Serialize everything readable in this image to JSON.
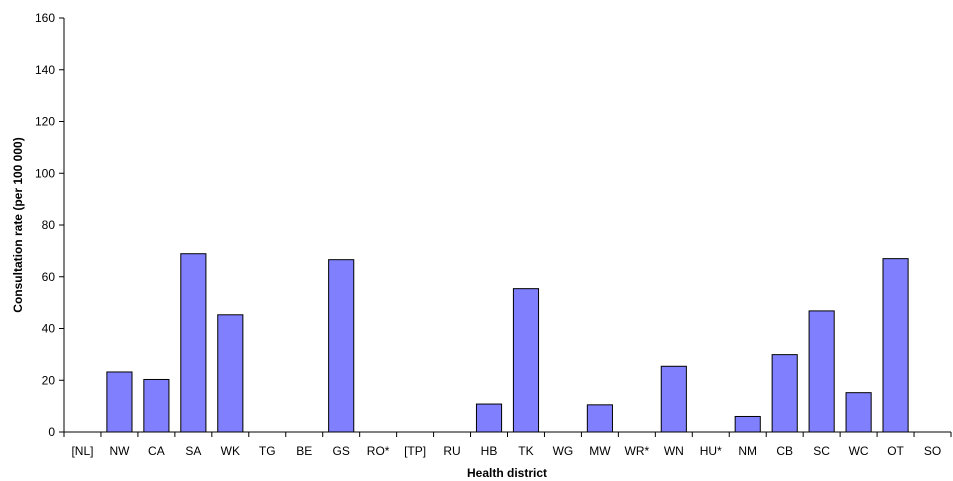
{
  "chart_data": {
    "type": "bar",
    "xlabel": "Health district",
    "ylabel": "Consultation rate (per 100 000)",
    "ylim": [
      0,
      160
    ],
    "yticks": [
      0,
      20,
      40,
      60,
      80,
      100,
      120,
      140,
      160
    ],
    "grid": false,
    "categories": [
      "[NL]",
      "NW",
      "CA",
      "SA",
      "WK",
      "TG",
      "BE",
      "GS",
      "RO*",
      "[TP]",
      "RU",
      "HB",
      "TK",
      "WG",
      "MW",
      "WR*",
      "WN",
      "HU*",
      "NM",
      "CB",
      "SC",
      "WC",
      "OT",
      "SO"
    ],
    "values": [
      0,
      23.2,
      20.3,
      68.9,
      45.3,
      0,
      0,
      66.6,
      0,
      0,
      0,
      10.8,
      55.4,
      0,
      10.5,
      0,
      25.4,
      0,
      6.0,
      29.9,
      46.8,
      15.2,
      67.0,
      0
    ],
    "bar_color": "#8080ff"
  }
}
